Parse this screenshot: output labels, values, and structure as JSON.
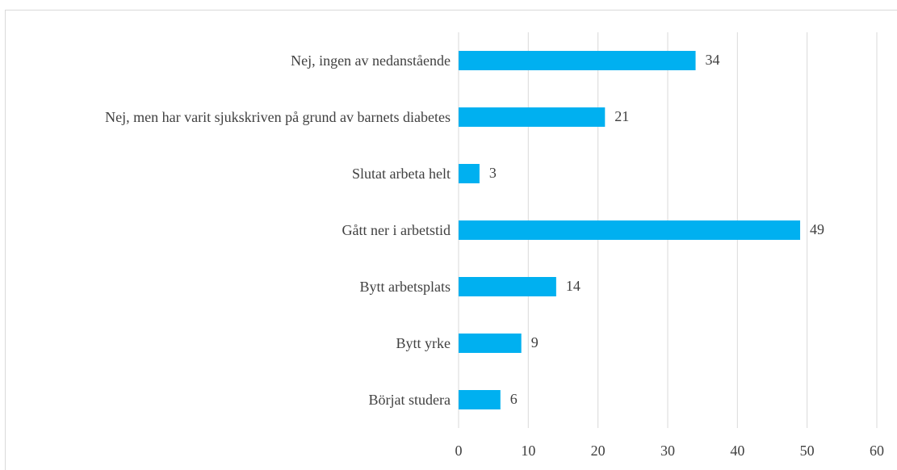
{
  "chart_data": {
    "type": "barh",
    "categories": [
      "Nej, ingen av nedanstående",
      "Nej, men har varit sjukskriven på grund av barnets diabetes",
      "Slutat arbeta helt",
      "Gått ner i arbetstid",
      "Bytt arbetsplats",
      "Bytt yrke",
      "Börjat studera"
    ],
    "values": [
      34,
      21,
      3,
      49,
      14,
      9,
      6
    ],
    "color": "#00b0f0",
    "xlim": [
      0,
      60
    ],
    "xticks": [
      0,
      10,
      20,
      30,
      40,
      50,
      60
    ],
    "grid": true
  }
}
